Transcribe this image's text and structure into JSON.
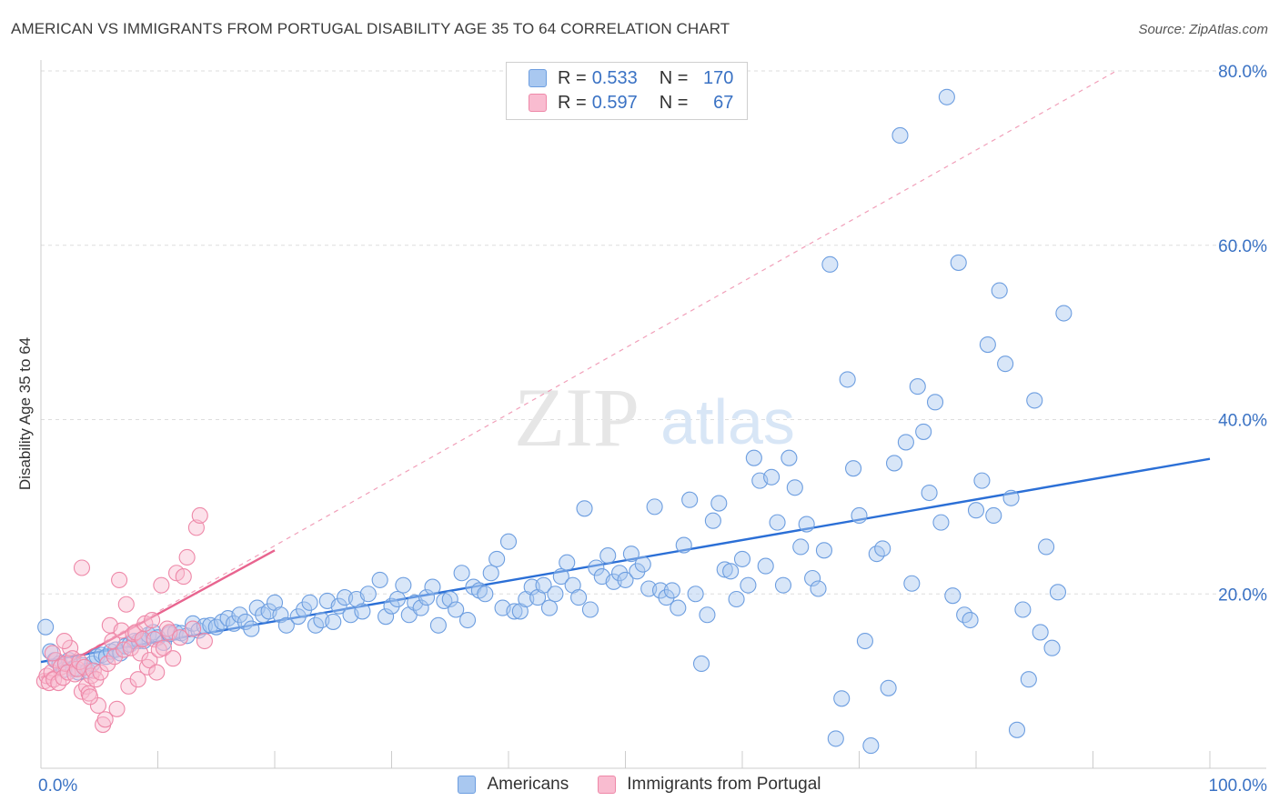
{
  "title": "AMERICAN VS IMMIGRANTS FROM PORTUGAL DISABILITY AGE 35 TO 64 CORRELATION CHART",
  "source": "Source: ZipAtlas.com",
  "watermark": {
    "zip": "ZIP",
    "atlas": "atlas"
  },
  "legend_top": {
    "r_label": "R =",
    "n_label": "N =",
    "rows": [
      {
        "r": "0.533",
        "n": "170",
        "fill": "#a9c8f0",
        "stroke": "#6d9ee0"
      },
      {
        "r": "0.597",
        "n": "67",
        "fill": "#f9bcd0",
        "stroke": "#ee88a8"
      }
    ]
  },
  "legend_bottom": [
    {
      "label": "Americans",
      "fill": "#a9c8f0",
      "stroke": "#6d9ee0"
    },
    {
      "label": "Immigrants from Portugal",
      "fill": "#f9bcd0",
      "stroke": "#ee88a8"
    }
  ],
  "chart_data": {
    "type": "scatter",
    "title": "AMERICAN VS IMMIGRANTS FROM PORTUGAL DISABILITY AGE 35 TO 64 CORRELATION CHART",
    "xlabel": "",
    "ylabel": "Disability Age 35 to 64",
    "xlim": [
      0,
      100
    ],
    "ylim": [
      0,
      80
    ],
    "x_tick_labels": [
      "0.0%",
      "100.0%"
    ],
    "y_ticks": [
      20,
      40,
      60,
      80
    ],
    "y_tick_labels": [
      "20.0%",
      "40.0%",
      "60.0%",
      "80.0%"
    ],
    "grid": true,
    "legend_placement": "top-center",
    "series": [
      {
        "name": "Americans",
        "color": "#6d9ee0",
        "fill": "#a9c8f0",
        "r": 0.533,
        "n": 170,
        "trend": {
          "x": [
            0,
            100
          ],
          "y": [
            12.2,
            35.5
          ],
          "color": "#2b6fd6"
        },
        "points": [
          [
            0.4,
            16.2
          ],
          [
            0.8,
            13.4
          ],
          [
            1.2,
            12.4
          ],
          [
            1.6,
            12.0
          ],
          [
            2.0,
            11.3
          ],
          [
            2.4,
            12.4
          ],
          [
            2.8,
            11.4
          ],
          [
            3.2,
            11.0
          ],
          [
            3.6,
            11.8
          ],
          [
            4.0,
            11.2
          ],
          [
            4.4,
            12.0
          ],
          [
            4.8,
            12.8
          ],
          [
            5.2,
            13.0
          ],
          [
            5.6,
            12.8
          ],
          [
            6.0,
            13.4
          ],
          [
            6.4,
            13.6
          ],
          [
            6.8,
            13.2
          ],
          [
            7.2,
            14.0
          ],
          [
            7.6,
            14.2
          ],
          [
            8.0,
            14.6
          ],
          [
            8.4,
            14.6
          ],
          [
            8.8,
            14.6
          ],
          [
            9.2,
            15.3
          ],
          [
            9.6,
            15.6
          ],
          [
            10.0,
            15.0
          ],
          [
            10.5,
            14.4
          ],
          [
            11.0,
            15.4
          ],
          [
            11.5,
            15.6
          ],
          [
            12.0,
            15.5
          ],
          [
            12.5,
            15.2
          ],
          [
            13.0,
            16.6
          ],
          [
            13.5,
            15.8
          ],
          [
            14.0,
            16.3
          ],
          [
            14.5,
            16.4
          ],
          [
            15.0,
            16.2
          ],
          [
            15.5,
            16.8
          ],
          [
            16.0,
            17.2
          ],
          [
            16.5,
            16.6
          ],
          [
            17.0,
            17.6
          ],
          [
            17.5,
            16.8
          ],
          [
            18.0,
            16.0
          ],
          [
            18.5,
            18.4
          ],
          [
            19.0,
            17.6
          ],
          [
            19.5,
            18.0
          ],
          [
            20.0,
            19.0
          ],
          [
            20.5,
            17.6
          ],
          [
            21.0,
            16.4
          ],
          [
            22.0,
            17.4
          ],
          [
            22.5,
            18.2
          ],
          [
            23.0,
            19.0
          ],
          [
            23.5,
            16.4
          ],
          [
            24.0,
            17.0
          ],
          [
            24.5,
            19.2
          ],
          [
            25.0,
            16.8
          ],
          [
            25.5,
            18.6
          ],
          [
            26.0,
            19.6
          ],
          [
            26.5,
            17.6
          ],
          [
            27.0,
            19.4
          ],
          [
            27.5,
            18.0
          ],
          [
            28.0,
            20.0
          ],
          [
            29.0,
            21.6
          ],
          [
            29.5,
            17.4
          ],
          [
            30.0,
            18.6
          ],
          [
            30.5,
            19.4
          ],
          [
            31.0,
            21.0
          ],
          [
            31.5,
            17.6
          ],
          [
            32.0,
            19.0
          ],
          [
            32.5,
            18.4
          ],
          [
            33.0,
            19.6
          ],
          [
            33.5,
            20.8
          ],
          [
            34.0,
            16.4
          ],
          [
            34.5,
            19.2
          ],
          [
            35.0,
            19.4
          ],
          [
            35.5,
            18.2
          ],
          [
            36.0,
            22.4
          ],
          [
            36.5,
            17.0
          ],
          [
            37.0,
            20.8
          ],
          [
            37.5,
            20.4
          ],
          [
            38.0,
            20.0
          ],
          [
            38.5,
            22.4
          ],
          [
            39.0,
            24.0
          ],
          [
            39.5,
            18.4
          ],
          [
            40.0,
            26.0
          ],
          [
            40.5,
            18.0
          ],
          [
            41.0,
            18.0
          ],
          [
            41.5,
            19.4
          ],
          [
            42.0,
            20.8
          ],
          [
            42.5,
            19.6
          ],
          [
            43.0,
            21.0
          ],
          [
            43.5,
            18.4
          ],
          [
            44.0,
            20.0
          ],
          [
            44.5,
            22.0
          ],
          [
            45.0,
            23.6
          ],
          [
            45.5,
            21.0
          ],
          [
            46.0,
            19.6
          ],
          [
            46.5,
            29.8
          ],
          [
            47.0,
            18.2
          ],
          [
            47.5,
            23.0
          ],
          [
            48.0,
            22.0
          ],
          [
            48.5,
            24.4
          ],
          [
            49.0,
            21.4
          ],
          [
            49.5,
            22.4
          ],
          [
            50.0,
            21.6
          ],
          [
            50.5,
            24.6
          ],
          [
            51.0,
            22.6
          ],
          [
            51.5,
            23.4
          ],
          [
            52.0,
            20.6
          ],
          [
            52.5,
            30.0
          ],
          [
            53.0,
            20.4
          ],
          [
            53.5,
            19.6
          ],
          [
            54.0,
            20.4
          ],
          [
            54.5,
            18.4
          ],
          [
            55.0,
            25.6
          ],
          [
            55.5,
            30.8
          ],
          [
            56.0,
            20.0
          ],
          [
            56.5,
            12.0
          ],
          [
            57.0,
            17.6
          ],
          [
            57.5,
            28.4
          ],
          [
            58.0,
            30.4
          ],
          [
            58.5,
            22.8
          ],
          [
            59.0,
            22.6
          ],
          [
            59.5,
            19.4
          ],
          [
            60.0,
            24.0
          ],
          [
            60.5,
            21.0
          ],
          [
            61.0,
            35.6
          ],
          [
            61.5,
            33.0
          ],
          [
            62.0,
            23.2
          ],
          [
            62.5,
            33.4
          ],
          [
            63.0,
            28.2
          ],
          [
            63.5,
            21.0
          ],
          [
            64.0,
            35.6
          ],
          [
            64.5,
            32.2
          ],
          [
            65.0,
            25.4
          ],
          [
            65.5,
            28.0
          ],
          [
            66.0,
            21.8
          ],
          [
            66.5,
            20.6
          ],
          [
            67.0,
            25.0
          ],
          [
            67.5,
            57.8
          ],
          [
            68.0,
            3.4
          ],
          [
            68.5,
            8.0
          ],
          [
            69.0,
            44.6
          ],
          [
            69.5,
            34.4
          ],
          [
            70.0,
            29.0
          ],
          [
            70.5,
            14.6
          ],
          [
            71.0,
            2.6
          ],
          [
            71.5,
            24.6
          ],
          [
            72.0,
            25.2
          ],
          [
            72.5,
            9.2
          ],
          [
            73.0,
            35.0
          ],
          [
            73.5,
            72.6
          ],
          [
            74.0,
            37.4
          ],
          [
            74.5,
            21.2
          ],
          [
            75.0,
            43.8
          ],
          [
            75.5,
            38.6
          ],
          [
            76.0,
            31.6
          ],
          [
            76.5,
            42.0
          ],
          [
            77.0,
            28.2
          ],
          [
            77.5,
            77.0
          ],
          [
            78.0,
            19.8
          ],
          [
            78.5,
            58.0
          ],
          [
            79.0,
            17.6
          ],
          [
            79.5,
            17.0
          ],
          [
            80.0,
            29.6
          ],
          [
            80.5,
            33.0
          ],
          [
            81.0,
            48.6
          ],
          [
            81.5,
            29.0
          ],
          [
            82.0,
            54.8
          ],
          [
            82.5,
            46.4
          ],
          [
            83.0,
            31.0
          ],
          [
            83.5,
            4.4
          ],
          [
            84.0,
            18.2
          ],
          [
            84.5,
            10.2
          ],
          [
            85.0,
            42.2
          ],
          [
            85.5,
            15.6
          ],
          [
            86.0,
            25.4
          ],
          [
            86.5,
            13.8
          ],
          [
            87.0,
            20.2
          ],
          [
            87.5,
            52.2
          ]
        ]
      },
      {
        "name": "Immigrants from Portugal",
        "color": "#ee88a8",
        "fill": "#f9bcd0",
        "r": 0.597,
        "n": 67,
        "trend": {
          "x": [
            0,
            20
          ],
          "y": [
            10.4,
            25.0
          ],
          "color": "#e8648f"
        },
        "trend_extended": {
          "x": [
            0,
            92
          ],
          "y": [
            10.4,
            80.0
          ]
        },
        "points": [
          [
            0.3,
            10.0
          ],
          [
            0.5,
            10.6
          ],
          [
            0.7,
            9.8
          ],
          [
            0.9,
            11.0
          ],
          [
            1.1,
            10.2
          ],
          [
            1.3,
            12.4
          ],
          [
            1.5,
            9.8
          ],
          [
            1.7,
            11.6
          ],
          [
            1.9,
            10.4
          ],
          [
            2.1,
            12.0
          ],
          [
            2.3,
            11.0
          ],
          [
            2.5,
            13.8
          ],
          [
            2.7,
            12.6
          ],
          [
            2.9,
            10.8
          ],
          [
            3.1,
            11.4
          ],
          [
            3.3,
            12.2
          ],
          [
            3.5,
            8.8
          ],
          [
            3.7,
            11.6
          ],
          [
            3.9,
            9.4
          ],
          [
            4.1,
            8.6
          ],
          [
            4.3,
            10.6
          ],
          [
            4.5,
            11.2
          ],
          [
            4.7,
            10.2
          ],
          [
            4.9,
            7.2
          ],
          [
            5.1,
            11.0
          ],
          [
            5.3,
            5.0
          ],
          [
            5.5,
            5.6
          ],
          [
            5.7,
            12.0
          ],
          [
            5.9,
            16.4
          ],
          [
            6.1,
            14.6
          ],
          [
            6.3,
            12.8
          ],
          [
            6.5,
            6.8
          ],
          [
            6.7,
            21.6
          ],
          [
            6.9,
            15.8
          ],
          [
            7.1,
            13.6
          ],
          [
            7.3,
            18.8
          ],
          [
            7.5,
            9.4
          ],
          [
            7.7,
            13.8
          ],
          [
            7.9,
            15.4
          ],
          [
            8.1,
            15.6
          ],
          [
            8.3,
            10.2
          ],
          [
            8.5,
            13.2
          ],
          [
            8.7,
            14.8
          ],
          [
            8.9,
            16.6
          ],
          [
            9.1,
            11.6
          ],
          [
            9.3,
            12.4
          ],
          [
            9.5,
            17.0
          ],
          [
            9.7,
            14.8
          ],
          [
            9.9,
            11.0
          ],
          [
            10.1,
            13.6
          ],
          [
            10.3,
            21.0
          ],
          [
            10.5,
            13.8
          ],
          [
            10.8,
            16.0
          ],
          [
            11.0,
            15.6
          ],
          [
            11.3,
            12.6
          ],
          [
            11.6,
            22.4
          ],
          [
            11.9,
            15.0
          ],
          [
            12.2,
            22.0
          ],
          [
            12.5,
            24.2
          ],
          [
            13.0,
            16.0
          ],
          [
            13.3,
            27.6
          ],
          [
            13.6,
            29.0
          ],
          [
            14.0,
            14.6
          ],
          [
            3.5,
            23.0
          ],
          [
            2.0,
            14.6
          ],
          [
            1.0,
            13.2
          ],
          [
            4.2,
            8.2
          ]
        ]
      }
    ]
  }
}
